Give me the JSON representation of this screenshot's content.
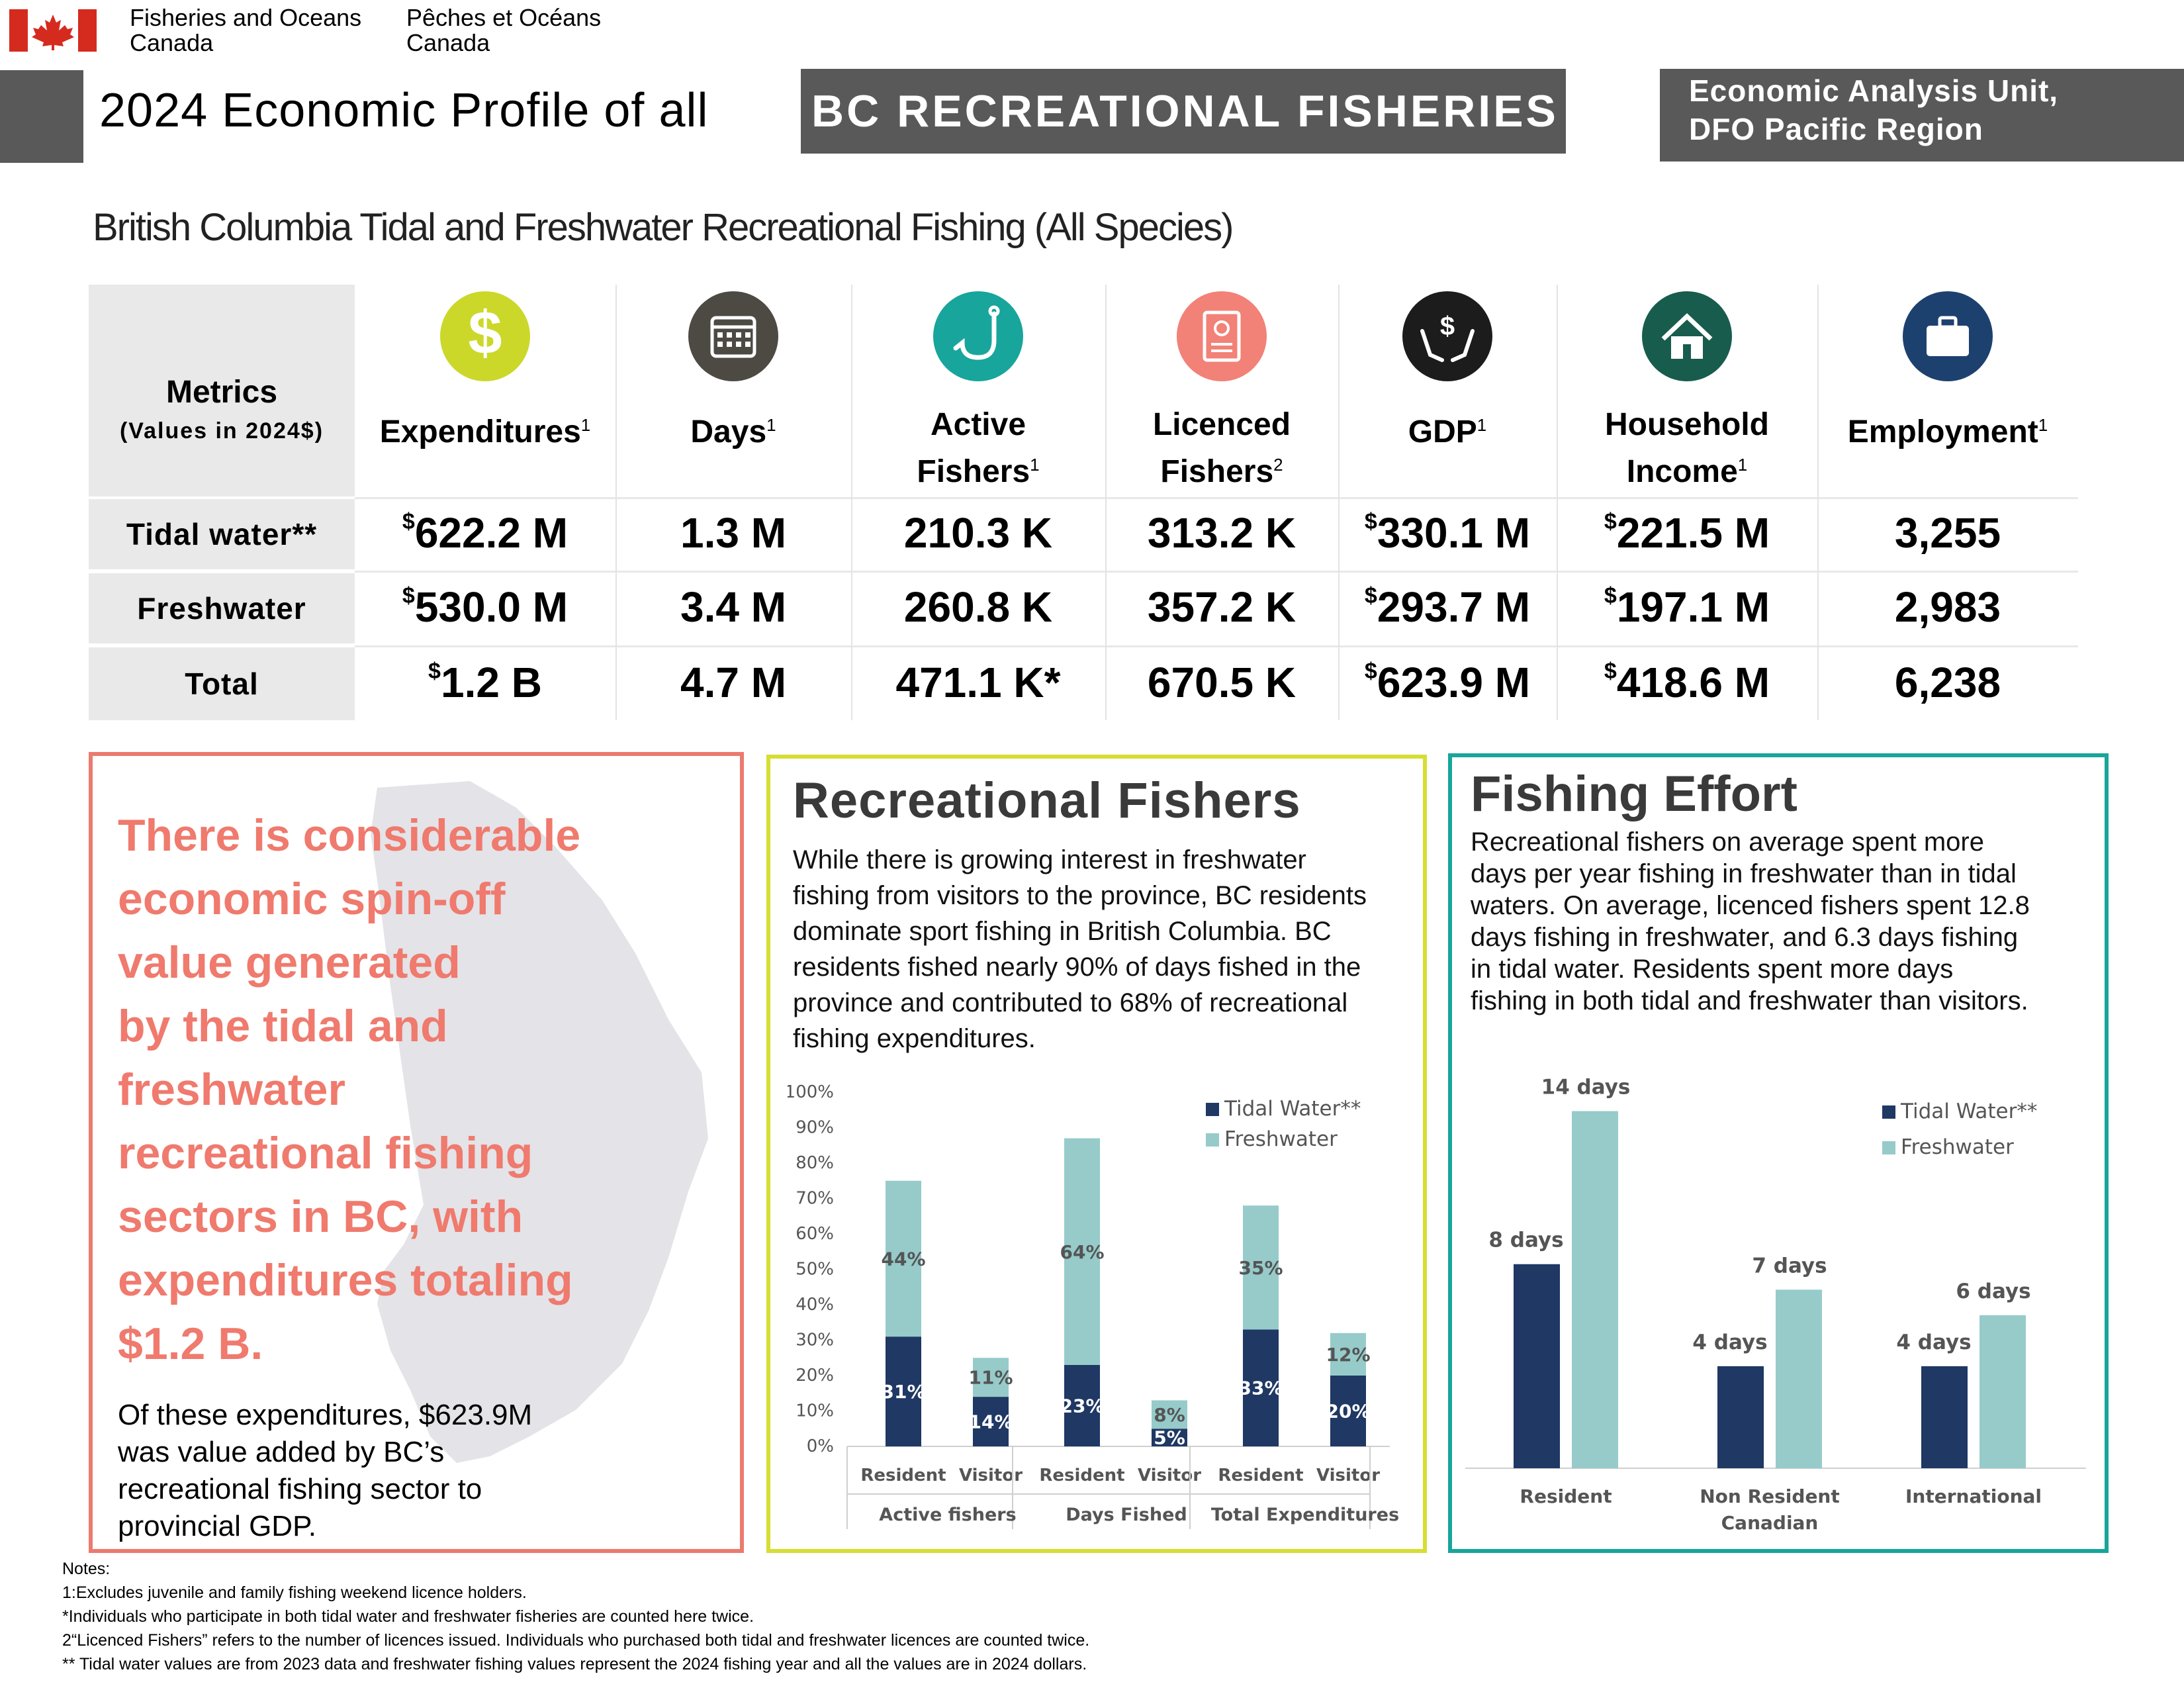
{
  "header": {
    "dept_en_line1": "Fisheries and Oceans",
    "dept_en_line2": "Canada",
    "dept_fr_line1": "Pêches et Océans",
    "dept_fr_line2": "Canada",
    "title_plain": "2024 Economic Profile of all",
    "title_highlight": "BC RECREATIONAL FISHERIES",
    "unit_line1": "Economic Analysis Unit,",
    "unit_line2": "DFO Pacific Region",
    "subtitle": "British Columbia Tidal and Freshwater Recreational Fishing (All Species)"
  },
  "colors": {
    "grey": "#595959",
    "canada_red": "#d52b1e",
    "orange_text": "#ef7a6d",
    "tidal": "#1f3864",
    "freshwater": "#96cbca"
  },
  "table": {
    "metrics_title": "Metrics",
    "metrics_sub": "(Values in 2024$)",
    "rows": [
      "Tidal water**",
      "Freshwater",
      "Total"
    ],
    "columns": [
      {
        "label1": "Expenditures",
        "label2": "",
        "sup": "1",
        "icon": "dollar-icon",
        "icon_color": "#cbd82a",
        "values": [
          "622.2 M",
          "530.0 M",
          "1.2 B"
        ],
        "currency": "$"
      },
      {
        "label1": "Days",
        "label2": "",
        "sup": "1",
        "icon": "calendar-icon",
        "icon_color": "#4d4a44",
        "values": [
          "1.3 M",
          "3.4 M",
          "4.7 M"
        ],
        "currency": ""
      },
      {
        "label1": "Active",
        "label2": "Fishers",
        "sup": "1",
        "icon": "fishhook-icon",
        "icon_color": "#17a59c",
        "values": [
          "210.3 K",
          "260.8 K",
          "471.1 K*"
        ],
        "currency": ""
      },
      {
        "label1": "Licenced",
        "label2": "Fishers",
        "sup": "2",
        "icon": "licence-certificate-icon",
        "icon_color": "#f28177",
        "values": [
          "313.2 K",
          "357.2 K",
          "670.5 K"
        ],
        "currency": ""
      },
      {
        "label1": "GDP",
        "label2": "",
        "sup": "1",
        "icon": "hands-dollar-icon",
        "icon_color": "#1c1c1c",
        "values": [
          "330.1 M",
          "293.7 M",
          "623.9 M"
        ],
        "currency": "$"
      },
      {
        "label1": "Household",
        "label2": "Income",
        "sup": "1",
        "icon": "house-icon",
        "icon_color": "#185c4e",
        "values": [
          "221.5 M",
          "197.1 M",
          "418.6 M"
        ],
        "currency": "$"
      },
      {
        "label1": "Employment",
        "label2": "",
        "sup": "1",
        "icon": "briefcase-icon",
        "icon_color": "#1d416f",
        "values": [
          "3,255",
          "2,983",
          "6,238"
        ],
        "currency": ""
      }
    ]
  },
  "spinoff": {
    "headline_lines": [
      "There is considerable",
      "economic spin-off",
      "value generated",
      "by the tidal and",
      "freshwater",
      "recreational fishing",
      "sectors in BC, with",
      "expenditures totaling",
      "$1.2 B."
    ],
    "body_lines": [
      "Of these expenditures, $623.9M",
      "was value added by BC’s",
      "recreational fishing sector to",
      "provincial GDP."
    ]
  },
  "recreational_fishers": {
    "title": "Recreational Fishers",
    "text_lines": [
      "While there is growing interest in freshwater",
      "fishing from visitors to the province, BC residents",
      "dominate sport fishing in British Columbia. BC",
      "residents fished nearly 90% of days fished in the",
      "province and contributed to 68% of recreational",
      "fishing expenditures."
    ]
  },
  "fishing_effort": {
    "title": "Fishing Effort",
    "text_lines": [
      "Recreational fishers on average spent more",
      "days per year fishing in freshwater than in tidal",
      "waters. On average, licenced fishers spent 12.8",
      "days fishing in freshwater, and 6.3 days fishing",
      "in tidal water. Residents spent more days",
      "fishing in both tidal and freshwater than visitors."
    ]
  },
  "chart_data": [
    {
      "type": "bar",
      "stacked": true,
      "yticks": [
        "0%",
        "10%",
        "20%",
        "30%",
        "40%",
        "50%",
        "60%",
        "70%",
        "80%",
        "90%",
        "100%"
      ],
      "ylim": [
        0,
        100
      ],
      "groups": [
        "Active fishers",
        "Days Fished",
        "Total Expenditures"
      ],
      "categories": [
        "Resident",
        "Visitor",
        "Resident",
        "Visitor",
        "Resident",
        "Visitor"
      ],
      "series": [
        {
          "name": "Tidal Water**",
          "color": "#1f3864",
          "values": [
            31,
            14,
            23,
            5,
            33,
            20
          ],
          "labels": [
            "31%",
            "14%",
            "23%",
            "5%",
            "33%",
            "20%"
          ]
        },
        {
          "name": "Freshwater",
          "color": "#96cbca",
          "values": [
            44,
            11,
            64,
            8,
            35,
            12
          ],
          "labels": [
            "44%",
            "11%",
            "64%",
            "8%",
            "35%",
            "12%"
          ]
        }
      ],
      "legend": "top-right",
      "grid": false
    },
    {
      "type": "bar",
      "categories": [
        "Resident",
        "Non Resident Canadian",
        "International"
      ],
      "category_lines": [
        [
          "Resident"
        ],
        [
          "Non Resident",
          "Canadian"
        ],
        [
          "International"
        ]
      ],
      "ylim": [
        0,
        15
      ],
      "series": [
        {
          "name": "Tidal Water**",
          "color": "#1f3864",
          "values": [
            8,
            4,
            4
          ],
          "labels": [
            "8 days",
            "4 days",
            "4 days"
          ]
        },
        {
          "name": "Freshwater",
          "color": "#96cbca",
          "values": [
            14,
            7,
            6
          ],
          "labels": [
            "14 days",
            "7 days",
            "6 days"
          ]
        }
      ],
      "legend": "top-right",
      "grid": false
    }
  ],
  "notes": {
    "lines": [
      "Notes:",
      "1:Excludes juvenile and family fishing weekend licence holders.",
      "*Individuals who participate in both tidal water and freshwater fisheries are counted here twice.",
      "2“Licenced Fishers” refers to the number of licences issued. Individuals who purchased both tidal and freshwater licences are counted twice.",
      "** Tidal water values are from 2023 data and freshwater fishing values represent the 2024 fishing year and all the values are in 2024 dollars."
    ]
  }
}
